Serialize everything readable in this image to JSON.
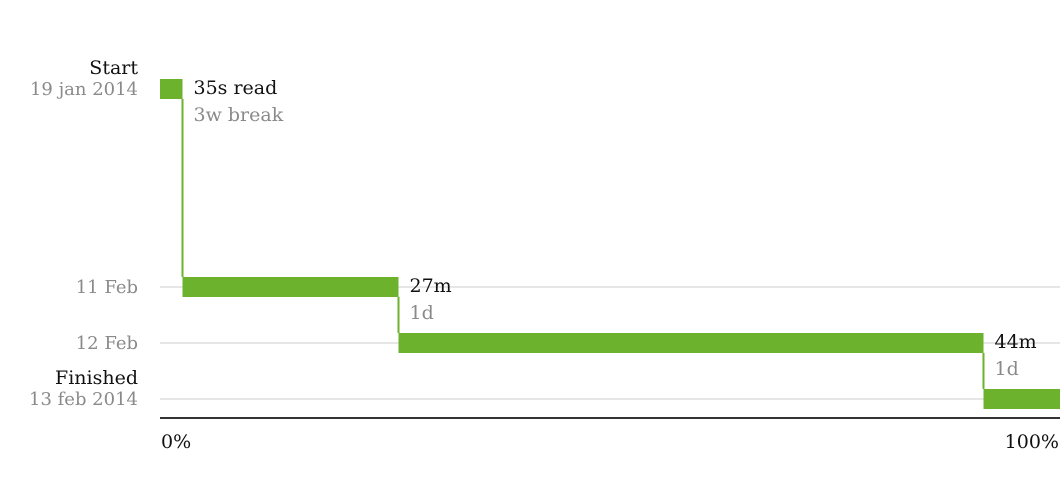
{
  "colors": {
    "bar": "#6db22c",
    "connector": "#6db22c",
    "grid": "#dddddd",
    "axis": "#333333",
    "label_dark": "#111111",
    "label_gray": "#8a8a8a"
  },
  "chart_data": {
    "type": "bar",
    "title": "",
    "xlabel": "",
    "ylabel": "",
    "x_axis": {
      "min_label": "0%",
      "max_label": "100%",
      "range": [
        0,
        100
      ],
      "unit": "percent"
    },
    "y_axis": {
      "range": [
        "2014-01-19",
        "2014-02-13"
      ]
    },
    "y_ticks": [
      {
        "date": "2014-01-19",
        "label": "19 jan 2014",
        "caption": "Start"
      },
      {
        "date": "2014-02-11",
        "label": "11 Feb",
        "caption": ""
      },
      {
        "date": "2014-02-12",
        "label": "12 Feb",
        "caption": ""
      },
      {
        "date": "2014-02-13",
        "label": "13 feb 2014",
        "caption": "Finished"
      }
    ],
    "sessions": [
      {
        "date": "2014-01-19",
        "start_pct": 0,
        "end_pct": 2.5,
        "duration_label": "35s read",
        "break_label": "3w break"
      },
      {
        "date": "2014-02-11",
        "start_pct": 2.5,
        "end_pct": 26.5,
        "duration_label": "27m",
        "break_label": "1d"
      },
      {
        "date": "2014-02-12",
        "start_pct": 26.5,
        "end_pct": 91.5,
        "duration_label": "44m",
        "break_label": "1d"
      },
      {
        "date": "2014-02-13",
        "start_pct": 91.5,
        "end_pct": 100,
        "duration_label": "",
        "break_label": ""
      }
    ],
    "grid": true,
    "legend": "none"
  }
}
